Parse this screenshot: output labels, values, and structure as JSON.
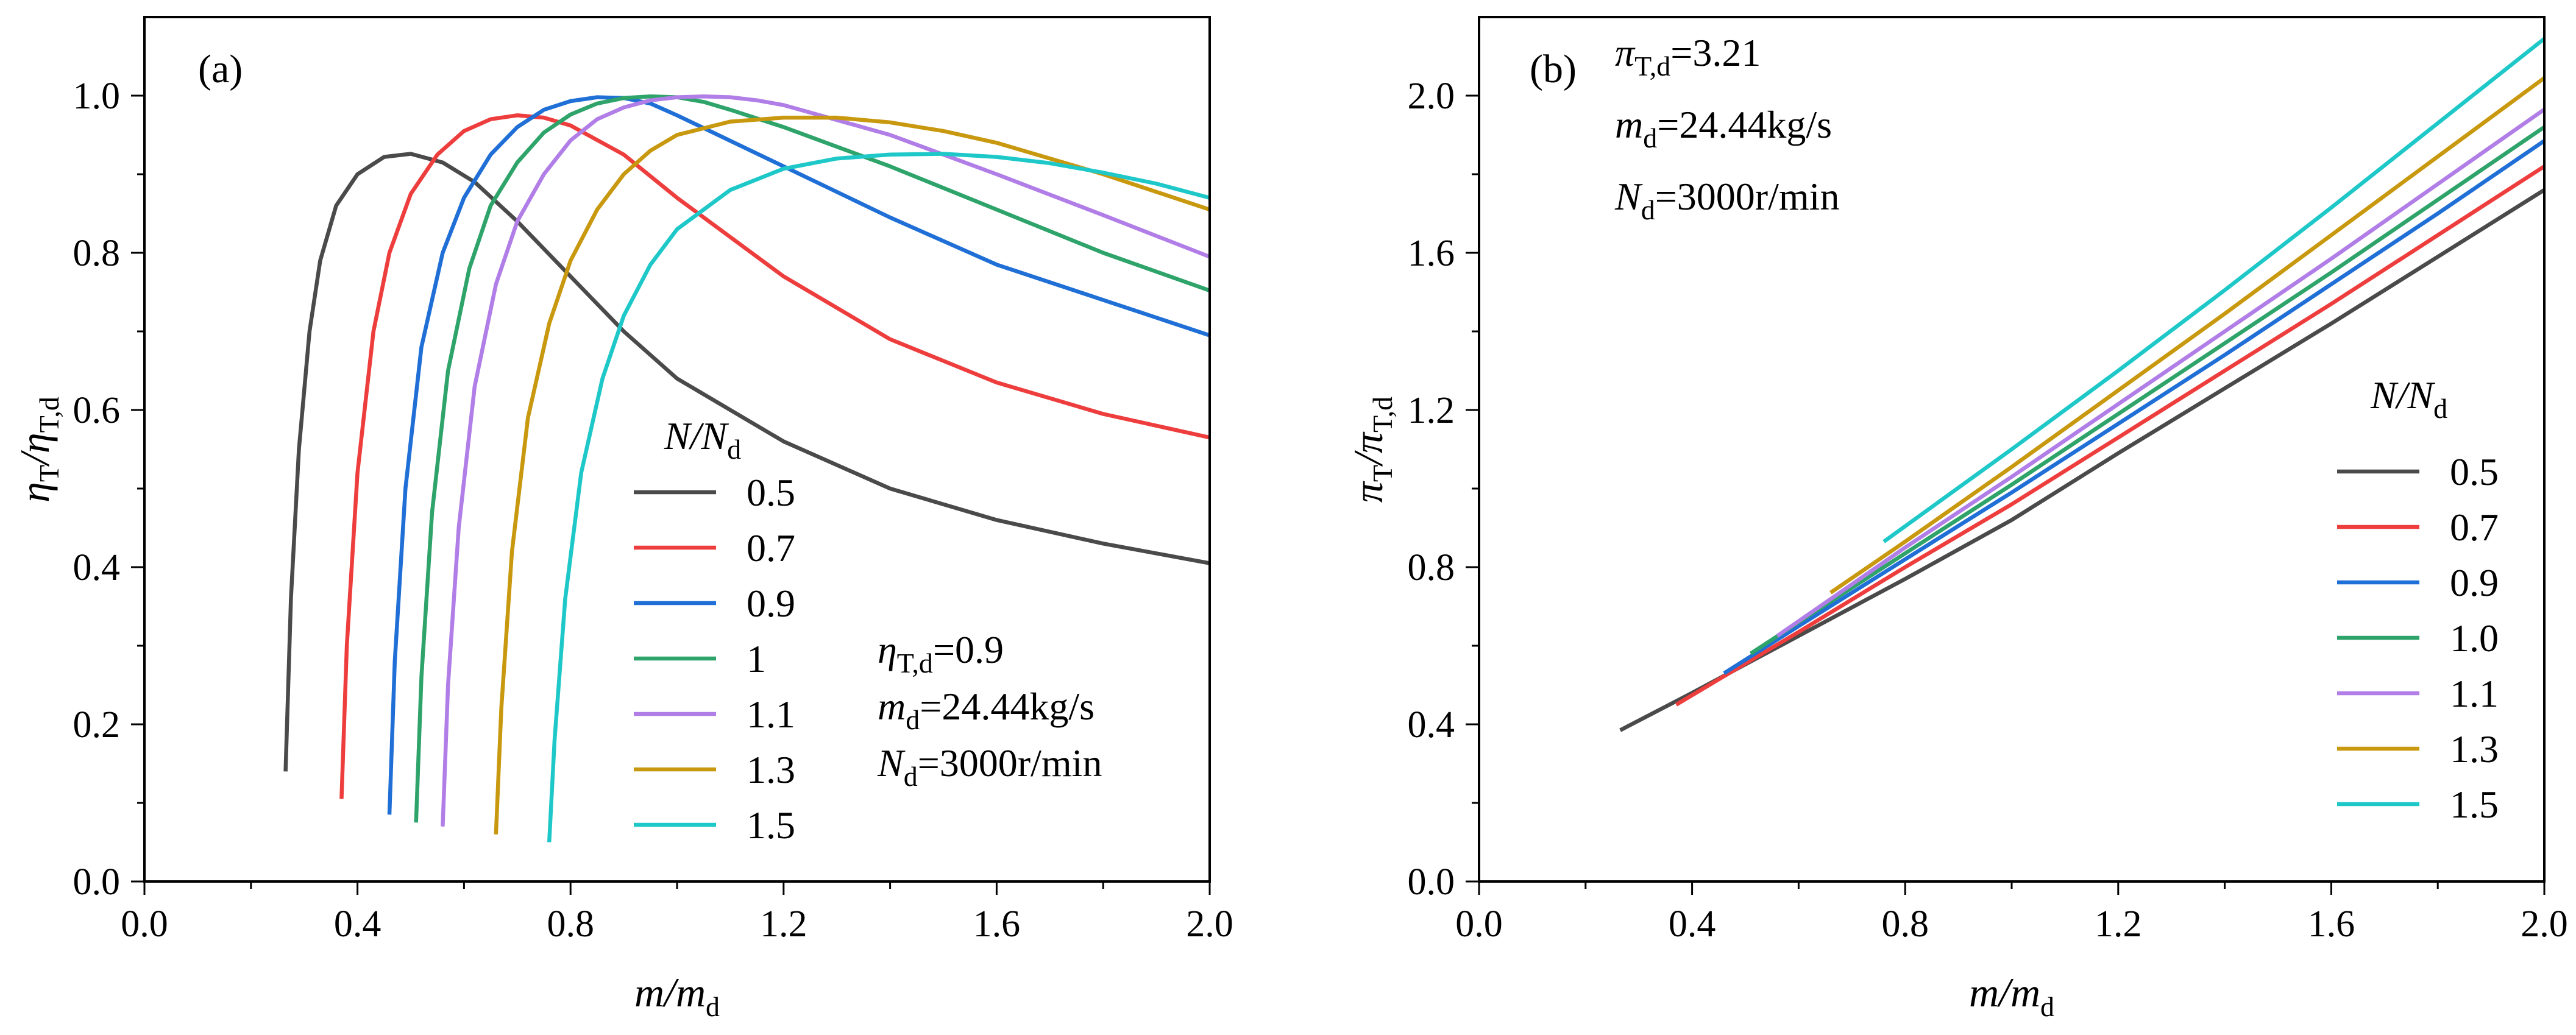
{
  "chart_data": [
    {
      "panel_label": "(a)",
      "type": "line",
      "xlabel": {
        "main": "m/m",
        "sub": "d"
      },
      "ylabel": {
        "main": "η",
        "sub1": "T",
        "mid": "/η",
        "sub2": "T,d"
      },
      "xlim": [
        0.0,
        2.0
      ],
      "ylim": [
        0.0,
        1.1
      ],
      "xticks": [
        "0.0",
        "0.4",
        "0.8",
        "1.2",
        "1.6",
        "2.0"
      ],
      "yticks": [
        "0.0",
        "0.2",
        "0.4",
        "0.6",
        "0.8",
        "1.0"
      ],
      "legend_title": {
        "main": "N/N",
        "sub": "d"
      },
      "annotations": [
        {
          "main": "η",
          "sub": "T,d",
          "rest": "=0.9"
        },
        {
          "main": "m",
          "sub": "d",
          "rest": "=24.44kg/s"
        },
        {
          "main": "N",
          "sub": "d",
          "rest": "=3000r/min"
        }
      ],
      "series": [
        {
          "name": "0.5",
          "color": "#4a4a4a",
          "x": [
            0.265,
            0.275,
            0.29,
            0.31,
            0.33,
            0.36,
            0.4,
            0.45,
            0.5,
            0.56,
            0.62,
            0.7,
            0.8,
            0.9,
            1.0,
            1.2,
            1.4,
            1.6,
            1.8,
            2.0
          ],
          "y": [
            0.14,
            0.36,
            0.55,
            0.7,
            0.79,
            0.86,
            0.9,
            0.922,
            0.926,
            0.915,
            0.89,
            0.84,
            0.77,
            0.7,
            0.64,
            0.56,
            0.5,
            0.46,
            0.43,
            0.405
          ]
        },
        {
          "name": "0.7",
          "color": "#ee3d3d",
          "x": [
            0.37,
            0.38,
            0.4,
            0.43,
            0.46,
            0.5,
            0.55,
            0.6,
            0.65,
            0.7,
            0.75,
            0.8,
            0.9,
            1.0,
            1.2,
            1.4,
            1.6,
            1.8,
            2.0
          ],
          "y": [
            0.105,
            0.3,
            0.52,
            0.7,
            0.8,
            0.875,
            0.925,
            0.955,
            0.97,
            0.975,
            0.972,
            0.962,
            0.925,
            0.87,
            0.77,
            0.69,
            0.635,
            0.595,
            0.565
          ]
        },
        {
          "name": "0.9",
          "color": "#1f6fd6",
          "x": [
            0.46,
            0.47,
            0.49,
            0.52,
            0.56,
            0.6,
            0.65,
            0.7,
            0.75,
            0.8,
            0.85,
            0.9,
            0.95,
            1.0,
            1.2,
            1.4,
            1.6,
            1.8,
            2.0
          ],
          "y": [
            0.085,
            0.28,
            0.5,
            0.68,
            0.8,
            0.87,
            0.925,
            0.96,
            0.982,
            0.993,
            0.998,
            0.997,
            0.99,
            0.975,
            0.91,
            0.845,
            0.785,
            0.74,
            0.695
          ]
        },
        {
          "name": "1",
          "color": "#2ea36a",
          "x": [
            0.51,
            0.52,
            0.54,
            0.57,
            0.61,
            0.65,
            0.7,
            0.75,
            0.8,
            0.85,
            0.9,
            0.95,
            1.0,
            1.05,
            1.1,
            1.2,
            1.4,
            1.6,
            1.8,
            2.0
          ],
          "y": [
            0.075,
            0.26,
            0.47,
            0.65,
            0.78,
            0.86,
            0.915,
            0.953,
            0.976,
            0.99,
            0.997,
            0.999,
            0.998,
            0.992,
            0.982,
            0.96,
            0.91,
            0.855,
            0.8,
            0.752
          ]
        },
        {
          "name": "1.1",
          "color": "#b07ee6",
          "x": [
            0.56,
            0.57,
            0.59,
            0.62,
            0.66,
            0.7,
            0.75,
            0.8,
            0.85,
            0.9,
            0.95,
            1.0,
            1.05,
            1.1,
            1.15,
            1.2,
            1.4,
            1.6,
            1.8,
            2.0
          ],
          "y": [
            0.07,
            0.25,
            0.45,
            0.63,
            0.76,
            0.84,
            0.9,
            0.943,
            0.97,
            0.985,
            0.994,
            0.998,
            0.999,
            0.998,
            0.994,
            0.988,
            0.95,
            0.9,
            0.848,
            0.795
          ]
        },
        {
          "name": "1.3",
          "color": "#c8980e",
          "x": [
            0.66,
            0.67,
            0.69,
            0.72,
            0.76,
            0.8,
            0.85,
            0.9,
            0.95,
            1.0,
            1.1,
            1.2,
            1.3,
            1.4,
            1.5,
            1.6,
            1.8,
            2.0
          ],
          "y": [
            0.06,
            0.22,
            0.42,
            0.59,
            0.71,
            0.79,
            0.855,
            0.9,
            0.93,
            0.95,
            0.967,
            0.972,
            0.972,
            0.966,
            0.955,
            0.94,
            0.9,
            0.855
          ]
        },
        {
          "name": "1.5",
          "color": "#1fc8c8",
          "x": [
            0.76,
            0.77,
            0.79,
            0.82,
            0.86,
            0.9,
            0.95,
            1.0,
            1.1,
            1.2,
            1.3,
            1.4,
            1.5,
            1.6,
            1.7,
            1.8,
            1.9,
            2.0
          ],
          "y": [
            0.05,
            0.18,
            0.36,
            0.52,
            0.64,
            0.72,
            0.785,
            0.83,
            0.88,
            0.907,
            0.92,
            0.925,
            0.926,
            0.922,
            0.914,
            0.902,
            0.888,
            0.87
          ]
        }
      ]
    },
    {
      "panel_label": "(b)",
      "type": "line",
      "xlabel": {
        "main": "m/m",
        "sub": "d"
      },
      "ylabel": {
        "main": "π",
        "sub1": "T",
        "mid": "/π",
        "sub2": "T,d"
      },
      "xlim": [
        0.0,
        2.0
      ],
      "ylim": [
        0.0,
        2.2
      ],
      "xticks": [
        "0.0",
        "0.4",
        "0.8",
        "1.2",
        "1.6",
        "2.0"
      ],
      "yticks": [
        "0.0",
        "0.4",
        "0.8",
        "1.2",
        "1.6",
        "2.0"
      ],
      "legend_title": {
        "main": "N/N",
        "sub": "d"
      },
      "annotations": [
        {
          "main": "π",
          "sub": "T,d",
          "rest": "=3.21"
        },
        {
          "main": "m",
          "sub": "d",
          "rest": "=24.44kg/s"
        },
        {
          "main": "N",
          "sub": "d",
          "rest": "=3000r/min"
        }
      ],
      "series": [
        {
          "name": "0.5",
          "color": "#4a4a4a",
          "x": [
            0.265,
            0.4,
            0.6,
            0.8,
            1.0,
            1.2,
            1.4,
            1.6,
            1.8,
            2.0
          ],
          "y": [
            0.385,
            0.48,
            0.625,
            0.77,
            0.92,
            1.09,
            1.255,
            1.42,
            1.59,
            1.76
          ]
        },
        {
          "name": "0.7",
          "color": "#ee3d3d",
          "x": [
            0.37,
            0.6,
            0.8,
            1.0,
            1.2,
            1.4,
            1.6,
            1.8,
            2.0
          ],
          "y": [
            0.45,
            0.635,
            0.8,
            0.96,
            1.13,
            1.3,
            1.47,
            1.645,
            1.82
          ]
        },
        {
          "name": "0.9",
          "color": "#1f6fd6",
          "x": [
            0.46,
            0.6,
            0.8,
            1.0,
            1.2,
            1.4,
            1.6,
            1.8,
            2.0
          ],
          "y": [
            0.53,
            0.65,
            0.82,
            0.99,
            1.165,
            1.34,
            1.52,
            1.7,
            1.885
          ]
        },
        {
          "name": "1.0",
          "color": "#2ea36a",
          "x": [
            0.51,
            0.6,
            0.8,
            1.0,
            1.2,
            1.4,
            1.6,
            1.8,
            2.0
          ],
          "y": [
            0.58,
            0.66,
            0.835,
            1.01,
            1.19,
            1.37,
            1.55,
            1.735,
            1.92
          ]
        },
        {
          "name": "1.1",
          "color": "#b07ee6",
          "x": [
            0.56,
            0.8,
            1.0,
            1.2,
            1.4,
            1.6,
            1.8,
            2.0
          ],
          "y": [
            0.625,
            0.85,
            1.03,
            1.215,
            1.4,
            1.585,
            1.775,
            1.965
          ]
        },
        {
          "name": "1.3",
          "color": "#c8980e",
          "x": [
            0.66,
            0.8,
            1.0,
            1.2,
            1.4,
            1.6,
            1.8,
            2.0
          ],
          "y": [
            0.735,
            0.865,
            1.055,
            1.25,
            1.445,
            1.645,
            1.845,
            2.045
          ]
        },
        {
          "name": "1.5",
          "color": "#1fc8c8",
          "x": [
            0.76,
            1.0,
            1.2,
            1.4,
            1.6,
            1.8,
            2.0
          ],
          "y": [
            0.865,
            1.1,
            1.3,
            1.505,
            1.715,
            1.93,
            2.145
          ]
        }
      ]
    }
  ]
}
